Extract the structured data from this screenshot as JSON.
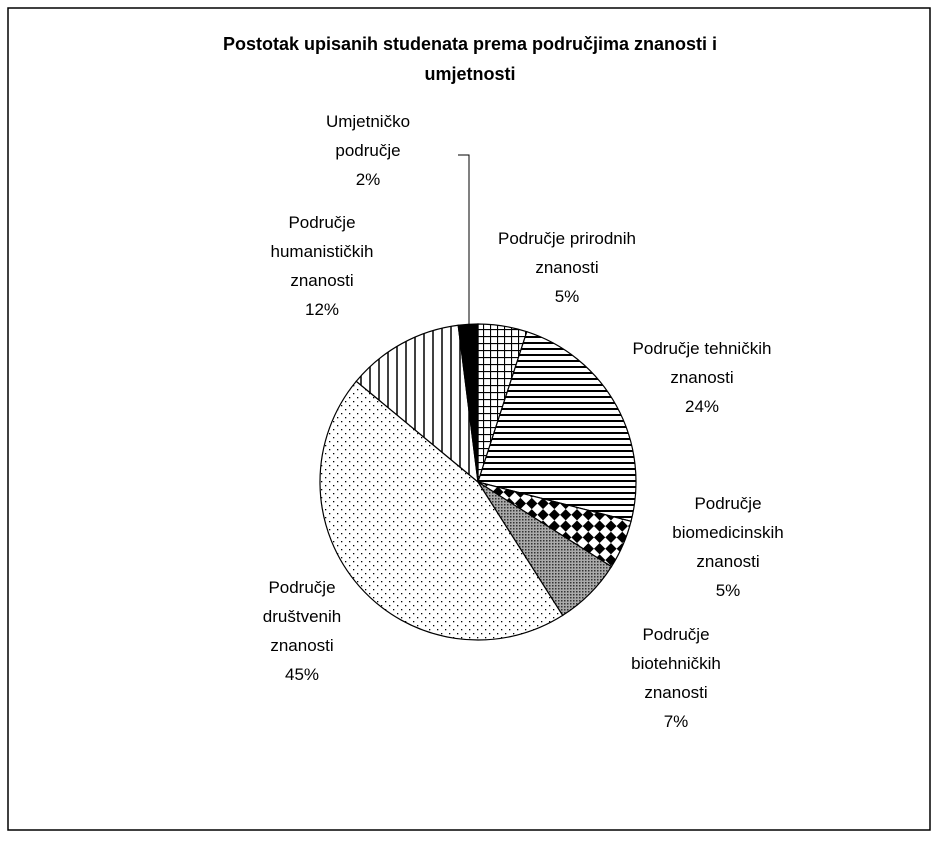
{
  "chart_data": {
    "type": "pie",
    "title": "Postotak upisanih studenata prema područjima znanosti i umjetnosti",
    "categories": [
      "Područje prirodnih znanosti",
      "Područje tehničkih znanosti",
      "Područje biomedicinskih znanosti",
      "Područje biotehničkih znanosti",
      "Područje društvenih znanosti",
      "Područje humanističkih znanosti",
      "Umjetničko područje"
    ],
    "values": [
      5,
      24,
      5,
      7,
      45,
      12,
      2
    ],
    "value_labels": [
      "5%",
      "24%",
      "5%",
      "7%",
      "45%",
      "12%",
      "2%"
    ]
  }
}
